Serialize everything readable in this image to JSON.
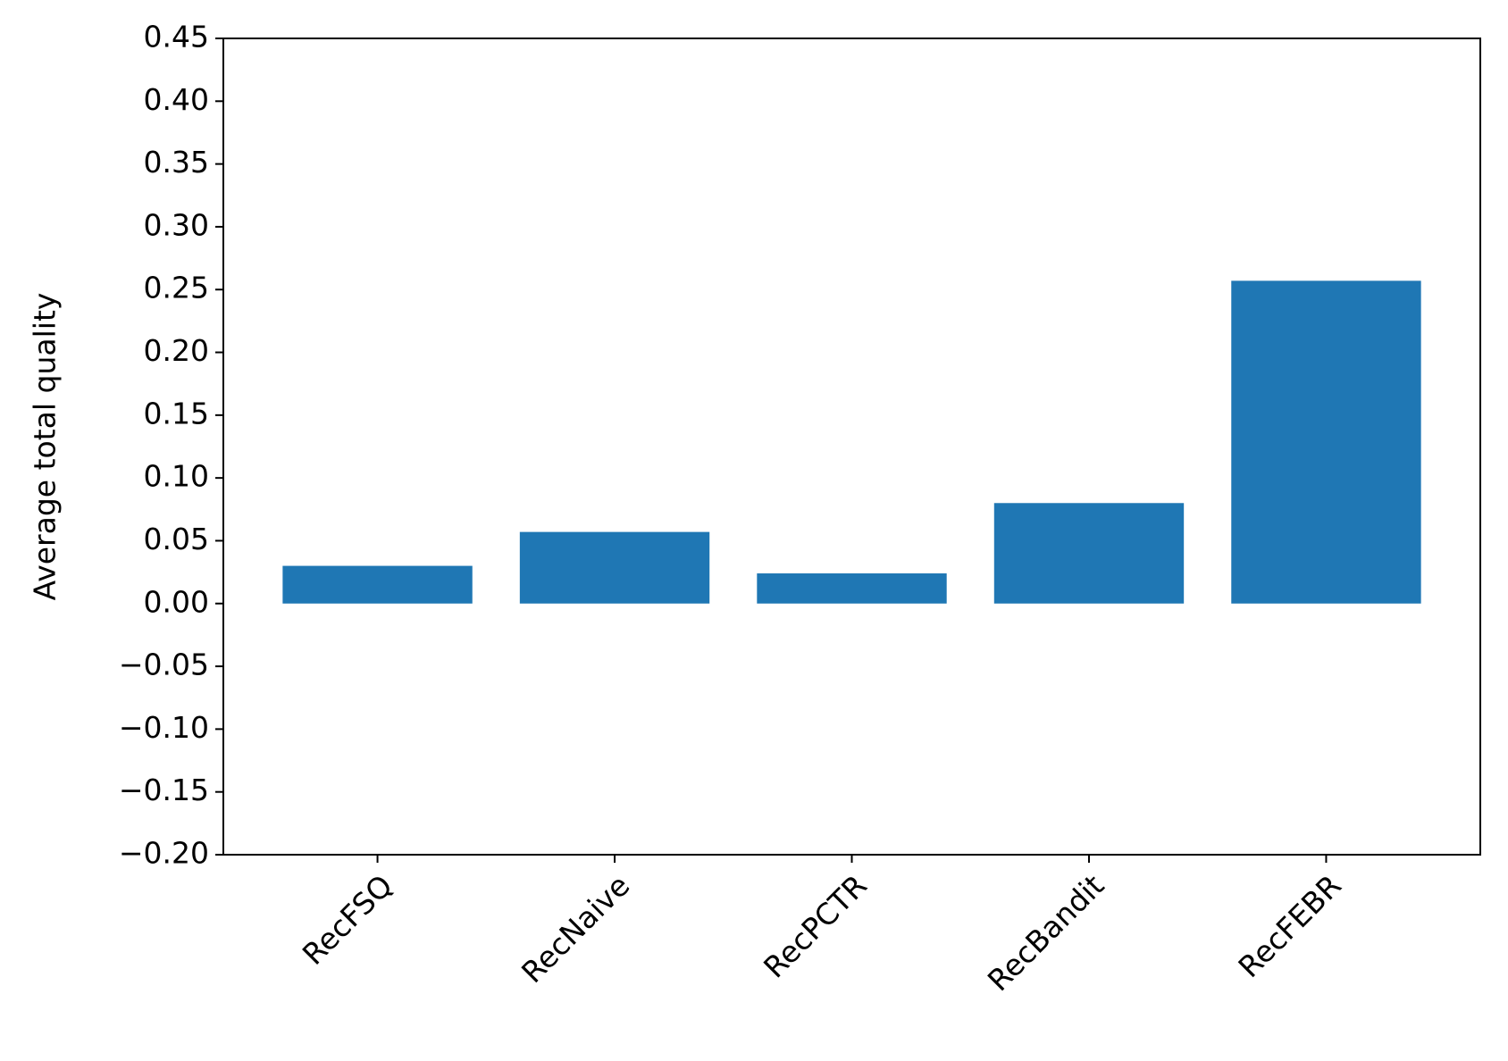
{
  "chart_data": {
    "type": "bar",
    "y_label": "Average total quality",
    "categories": [
      "RecFSQ",
      "RecNaive",
      "RecPCTR",
      "RecBandit",
      "RecFEBR"
    ],
    "values": [
      0.03,
      0.057,
      0.024,
      0.08,
      0.257
    ],
    "color": "#1f77b4",
    "ylim": [
      -0.2,
      0.45
    ],
    "yticks": [
      {
        "value": -0.2,
        "label": "−0.20"
      },
      {
        "value": -0.15,
        "label": "−0.15"
      },
      {
        "value": -0.1,
        "label": "−0.10"
      },
      {
        "value": -0.05,
        "label": "−0.05"
      },
      {
        "value": 0,
        "label": "0.00"
      },
      {
        "value": 0.05,
        "label": "0.05"
      },
      {
        "value": 0.1,
        "label": "0.10"
      },
      {
        "value": 0.15,
        "label": "0.15"
      },
      {
        "value": 0.2,
        "label": "0.20"
      },
      {
        "value": 0.25,
        "label": "0.25"
      },
      {
        "value": 0.3,
        "label": "0.30"
      },
      {
        "value": 0.35,
        "label": "0.35"
      },
      {
        "value": 0.4,
        "label": "0.40"
      },
      {
        "value": 0.45,
        "label": "0.45"
      }
    ],
    "grid": false
  }
}
